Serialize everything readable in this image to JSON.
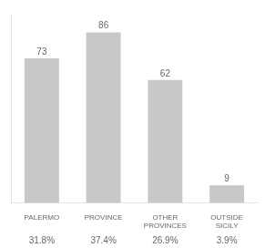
{
  "chart_data": {
    "type": "bar",
    "categories": [
      "PALERMO",
      "PROVINCE",
      "OTHER PROVINCES",
      "OUTSIDE SICILY"
    ],
    "values": [
      73,
      86,
      62,
      9
    ],
    "color": "#c8c8c8",
    "ylim": [
      0,
      95
    ],
    "grid": false,
    "data_labels": true,
    "tick_labels": "x",
    "annotations": [
      "31.8%",
      "37.4%",
      "26.9%",
      "3.9%"
    ]
  }
}
